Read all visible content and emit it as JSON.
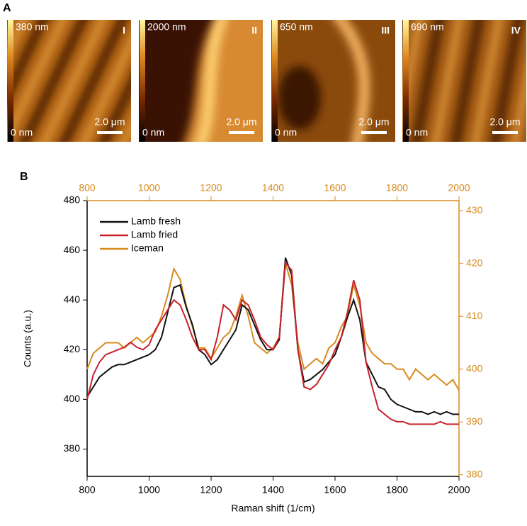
{
  "panel_labels": [
    "A",
    "B"
  ],
  "images": [
    {
      "max": "380 nm",
      "min": "0 nm",
      "scale": "2.0 μm",
      "id": "I"
    },
    {
      "max": "2000 nm",
      "min": "0 nm",
      "scale": "2.0 μm",
      "id": "II"
    },
    {
      "max": "650 nm",
      "min": "0 nm",
      "scale": "2.0 μm",
      "id": "III"
    },
    {
      "max": "690 nm",
      "min": "0 nm",
      "scale": "2.0 μm",
      "id": "IV"
    }
  ],
  "chart_data": {
    "type": "line",
    "xlabel": "Raman shift (1/cm)",
    "ylabel": "Counts (a.u.)",
    "x": [
      800,
      820,
      840,
      860,
      880,
      900,
      920,
      940,
      960,
      980,
      1000,
      1020,
      1040,
      1060,
      1080,
      1100,
      1120,
      1140,
      1160,
      1180,
      1200,
      1220,
      1240,
      1260,
      1280,
      1300,
      1320,
      1340,
      1360,
      1380,
      1400,
      1420,
      1440,
      1460,
      1480,
      1500,
      1520,
      1540,
      1560,
      1580,
      1600,
      1620,
      1640,
      1660,
      1680,
      1700,
      1720,
      1740,
      1760,
      1780,
      1800,
      1820,
      1840,
      1860,
      1880,
      1900,
      1920,
      1940,
      1960,
      1980,
      2000
    ],
    "series": [
      {
        "name": "Lamb fresh",
        "color": "#111111",
        "values": [
          401,
          405,
          409,
          411,
          413,
          414,
          414,
          415,
          416,
          417,
          418,
          420,
          425,
          435,
          445,
          446,
          437,
          430,
          420,
          418,
          414,
          416,
          420,
          424,
          428,
          438,
          436,
          430,
          424,
          420,
          420,
          424,
          457,
          450,
          420,
          407,
          408,
          410,
          412,
          415,
          418,
          425,
          433,
          440,
          432,
          415,
          410,
          405,
          404,
          400,
          398,
          397,
          396,
          395,
          395,
          394,
          395,
          394,
          395,
          394,
          394
        ]
      },
      {
        "name": "Lamb fried",
        "color": "#c8202a",
        "values": [
          400,
          410,
          415,
          418,
          419,
          420,
          421,
          423,
          421,
          420,
          422,
          428,
          432,
          436,
          440,
          438,
          432,
          425,
          420,
          420,
          416,
          425,
          438,
          436,
          432,
          440,
          438,
          432,
          425,
          422,
          420,
          425,
          455,
          452,
          420,
          405,
          404,
          406,
          410,
          414,
          420,
          425,
          435,
          448,
          440,
          415,
          405,
          396,
          394,
          392,
          391,
          391,
          390,
          390,
          390,
          390,
          390,
          391,
          390,
          390,
          390
        ]
      },
      {
        "name": "Iceman",
        "color": "#d88a1e",
        "axis": "y2",
        "values": [
          400,
          403,
          404,
          405,
          405,
          405,
          404,
          405,
          406,
          405,
          406,
          407,
          410,
          414,
          419,
          417,
          412,
          408,
          404,
          404,
          402,
          404,
          406,
          407,
          410,
          414,
          410,
          405,
          404,
          403,
          404,
          406,
          420,
          416,
          405,
          400,
          401,
          402,
          401,
          404,
          405,
          408,
          410,
          416,
          412,
          405,
          403,
          402,
          401,
          401,
          400,
          400,
          398,
          400,
          399,
          398,
          399,
          398,
          397,
          398,
          396
        ]
      }
    ],
    "xlim": [
      800,
      2000
    ],
    "xticks": [
      800,
      1000,
      1200,
      1400,
      1600,
      1800,
      2000
    ],
    "x2lim": [
      800,
      2000
    ],
    "x2ticks": [
      800,
      1000,
      1200,
      1400,
      1600,
      1800,
      2000
    ],
    "ylim": [
      369,
      480
    ],
    "yticks": [
      380,
      400,
      420,
      440,
      460,
      480
    ],
    "y2lim": [
      379.7,
      431.9
    ],
    "y2ticks": [
      380,
      390,
      400,
      410,
      420,
      430
    ],
    "legend": "upper left"
  }
}
